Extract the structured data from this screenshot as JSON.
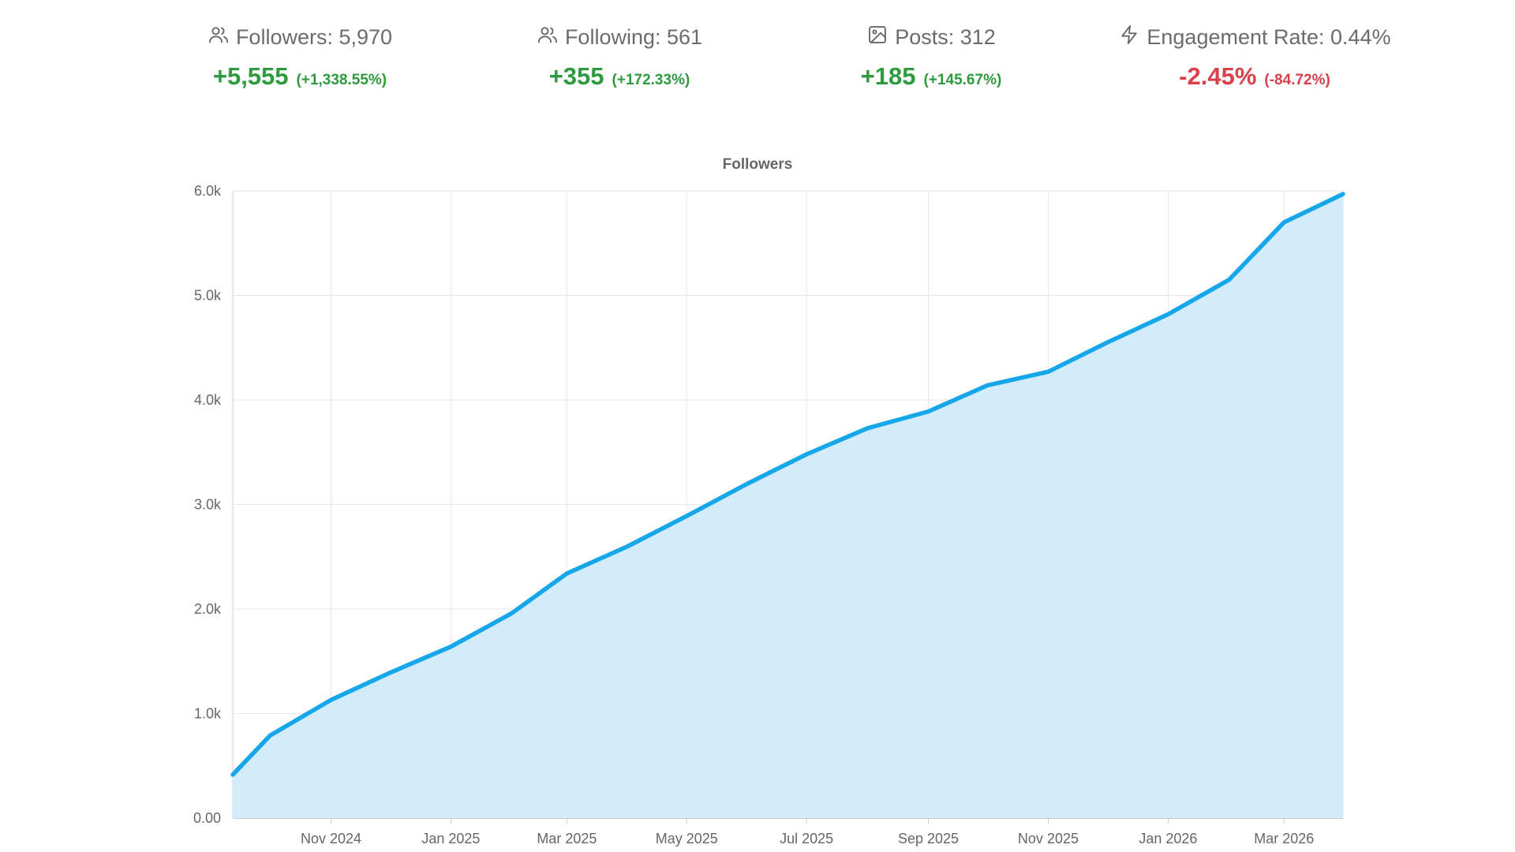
{
  "stats": [
    {
      "label": "Followers: 5,970",
      "change": "+5,555",
      "pct": "(+1,338.55%)",
      "trend": "positive",
      "icon": "users-icon"
    },
    {
      "label": "Following: 561",
      "change": "+355",
      "pct": "(+172.33%)",
      "trend": "positive",
      "icon": "users-icon"
    },
    {
      "label": "Posts: 312",
      "change": "+185",
      "pct": "(+145.67%)",
      "trend": "positive",
      "icon": "image-icon"
    },
    {
      "label": "Engagement Rate: 0.44%",
      "change": "-2.45%",
      "pct": "(-84.72%)",
      "trend": "negative",
      "icon": "lightning-icon"
    }
  ],
  "colors": {
    "positive": "#2e9a3e",
    "negative": "#d9404a",
    "line": "#16a6ea",
    "fill": "#d3ecfb",
    "grid": "#e6e6e6"
  },
  "chart_data": {
    "type": "area",
    "title": "Followers",
    "xlabel": "",
    "ylabel": "",
    "ylim": [
      0,
      6000
    ],
    "yticks": [
      0,
      1000,
      2000,
      3000,
      4000,
      5000,
      6000
    ],
    "ytick_labels": [
      "0.00",
      "1.0k",
      "2.0k",
      "3.0k",
      "4.0k",
      "5.0k",
      "6.0k"
    ],
    "xlim": [
      "2024-09-12",
      "2026-03-31"
    ],
    "xtick_dates": [
      "2024-11-01",
      "2025-01-01",
      "2025-03-01",
      "2025-05-01",
      "2025-07-01",
      "2025-09-01",
      "2025-11-01",
      "2026-01-01",
      "2026-03-01"
    ],
    "xtick_labels": [
      "Nov 2024",
      "Jan 2025",
      "Mar 2025",
      "May 2025",
      "Jul 2025",
      "Sep 2025",
      "Nov 2025",
      "Jan 2026",
      "Mar 2026"
    ],
    "grid": true,
    "series": [
      {
        "name": "Followers",
        "x": [
          "2024-09-12",
          "2024-10-01",
          "2024-11-01",
          "2024-12-01",
          "2025-01-01",
          "2025-02-01",
          "2025-03-01",
          "2025-04-01",
          "2025-05-01",
          "2025-06-01",
          "2025-07-01",
          "2025-08-01",
          "2025-09-01",
          "2025-10-01",
          "2025-11-01",
          "2025-12-01",
          "2026-01-01",
          "2026-02-01",
          "2026-03-01",
          "2026-03-31"
        ],
        "values": [
          415,
          790,
          1130,
          1390,
          1640,
          1960,
          2340,
          2600,
          2890,
          3200,
          3480,
          3730,
          3890,
          4140,
          4270,
          4550,
          4820,
          5150,
          5700,
          5970
        ]
      }
    ]
  }
}
